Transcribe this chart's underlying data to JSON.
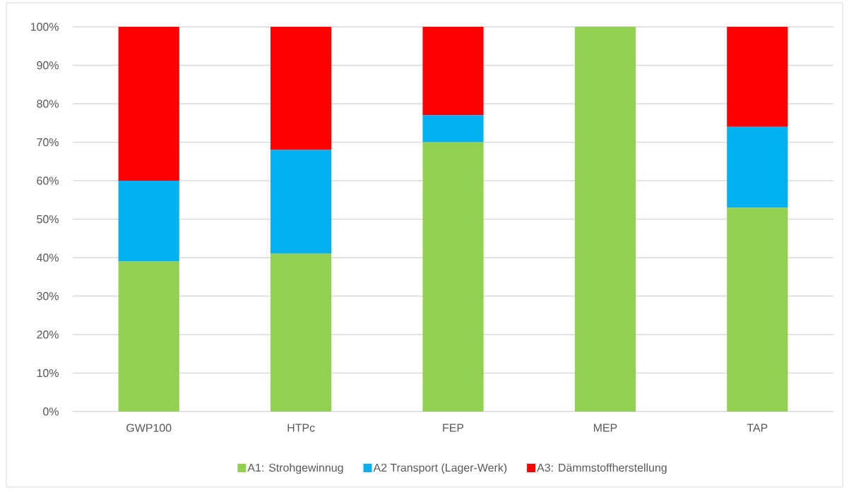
{
  "chart_data": {
    "type": "bar",
    "stacked": true,
    "categories": [
      "GWP100",
      "HTPc",
      "FEP",
      "MEP",
      "TAP"
    ],
    "series": [
      {
        "name": "A1: Strohgewinnug",
        "color": "#92d050",
        "values": [
          39,
          41,
          70,
          100,
          53
        ]
      },
      {
        "name": "A2 Transport (Lager-Werk)",
        "color": "#00b0f0",
        "values": [
          21,
          27,
          7,
          0,
          21
        ]
      },
      {
        "name": "A3: Dämmstoffherstellung",
        "color": "#ff0000",
        "values": [
          40,
          32,
          23,
          0,
          26
        ]
      }
    ],
    "ylim": [
      0,
      100
    ],
    "yticks": [
      {
        "value": 0,
        "label": "0%"
      },
      {
        "value": 10,
        "label": "10%"
      },
      {
        "value": 20,
        "label": "20%"
      },
      {
        "value": 30,
        "label": "30%"
      },
      {
        "value": 40,
        "label": "40%"
      },
      {
        "value": 50,
        "label": "50%"
      },
      {
        "value": 60,
        "label": "60%"
      },
      {
        "value": 70,
        "label": "70%"
      },
      {
        "value": 80,
        "label": "80%"
      },
      {
        "value": 90,
        "label": "90%"
      },
      {
        "value": 100,
        "label": "100%"
      }
    ],
    "grid": "y",
    "legend": "bottom"
  }
}
